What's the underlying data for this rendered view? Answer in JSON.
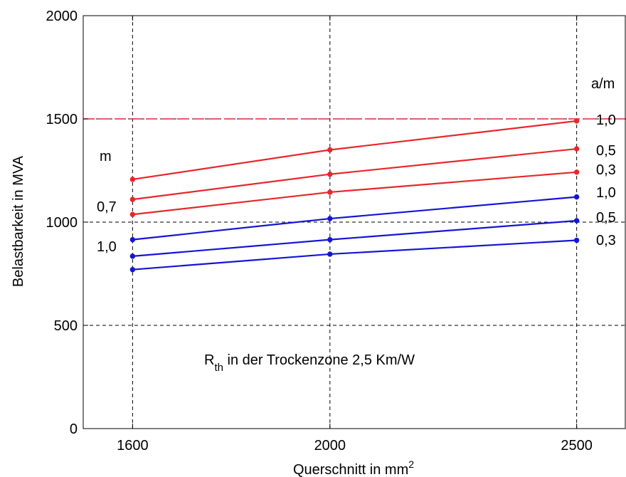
{
  "chart_data": {
    "type": "line",
    "xlabel": "Querschnitt in mm",
    "xlabel_sup": "2",
    "ylabel": "Belastbarkeit in MVA",
    "x": [
      1600,
      2000,
      2500
    ],
    "x_tick_labels": [
      "1600",
      "2000",
      "2500"
    ],
    "y_ticks": [
      0,
      500,
      1000,
      1500,
      2000
    ],
    "y_tick_labels": [
      "0",
      "500",
      "1000",
      "1500",
      "2000"
    ],
    "xlim": [
      1500,
      2600
    ],
    "ylim": [
      0,
      2000
    ],
    "grid": true,
    "reference_line": {
      "y": 1500,
      "style": "dashed",
      "color": "#e8272b"
    },
    "series": [
      {
        "color": "#e8272b",
        "values": [
          1207,
          1350,
          1490
        ]
      },
      {
        "color": "#e8272b",
        "values": [
          1110,
          1232,
          1355
        ]
      },
      {
        "color": "#e8272b",
        "values": [
          1037,
          1145,
          1242
        ]
      },
      {
        "color": "#1515d6",
        "values": [
          915,
          1017,
          1122
        ]
      },
      {
        "color": "#1515d6",
        "values": [
          835,
          915,
          1007
        ]
      },
      {
        "color": "#1515d6",
        "values": [
          770,
          845,
          912
        ]
      }
    ],
    "annotations": {
      "header_right": "a/m",
      "header_left": "m",
      "right_labels": [
        "1,0",
        "0,5",
        "0,3",
        "1,0",
        "0,5",
        "0,3"
      ],
      "left_red": "0,7",
      "left_blue": "1,0",
      "note_main": "R",
      "note_sub": "th",
      "note_rest": " in der Trockenzone 2,5 Km/W"
    }
  }
}
